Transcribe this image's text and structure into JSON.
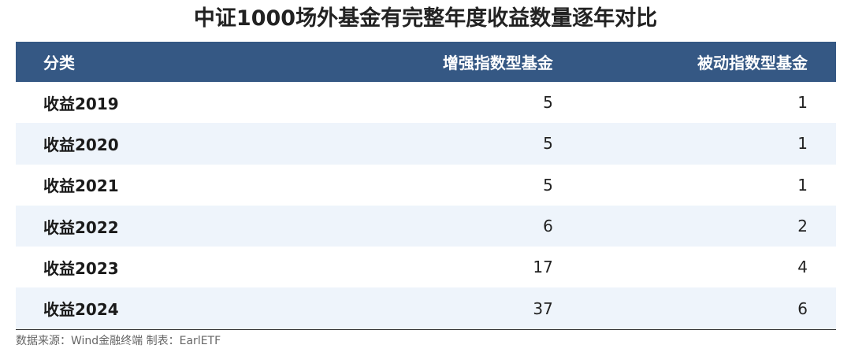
{
  "chart_data": {
    "type": "table",
    "title": "中证1000场外基金有完整年度收益数量逐年对比",
    "columns": [
      "分类",
      "增强指数型基金",
      "被动指数型基金"
    ],
    "rows": [
      {
        "category": "收益2019",
        "enhanced": "5",
        "passive": "1"
      },
      {
        "category": "收益2020",
        "enhanced": "5",
        "passive": "1"
      },
      {
        "category": "收益2021",
        "enhanced": "5",
        "passive": "1"
      },
      {
        "category": "收益2022",
        "enhanced": "6",
        "passive": "2"
      },
      {
        "category": "收益2023",
        "enhanced": "17",
        "passive": "4"
      },
      {
        "category": "收益2024",
        "enhanced": "37",
        "passive": "6"
      }
    ],
    "source": "数据来源：Wind金融终端 制表：EarlETF"
  },
  "colors": {
    "header_bg": "#355884",
    "alt_row_bg": "#eef4fb"
  }
}
